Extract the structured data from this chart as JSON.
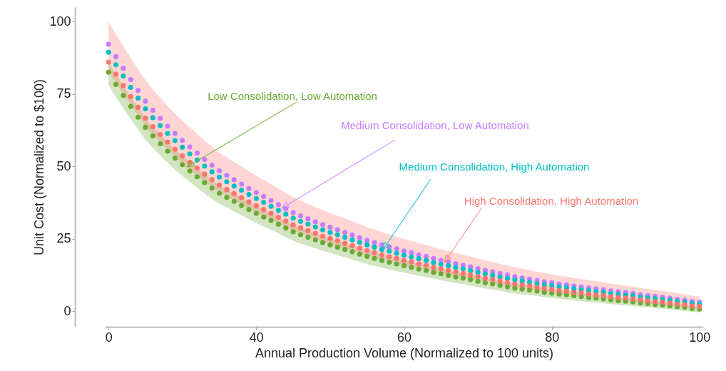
{
  "chart_data": {
    "type": "scatter",
    "xlabel": "Annual Production Volume (Normalized to 100 units)",
    "ylabel": "Unit Cost (Normalized to $100)",
    "ylim": [
      -5.4,
      105
    ],
    "yticks": [
      0,
      25,
      50,
      75,
      100
    ],
    "grid": false,
    "marker": "circle",
    "categories": [
      "0",
      null,
      null,
      null,
      null,
      null,
      null,
      null,
      null,
      null,
      null,
      null,
      null,
      null,
      null,
      null,
      null,
      null,
      null,
      null,
      "40",
      null,
      null,
      null,
      null,
      null,
      null,
      null,
      null,
      null,
      null,
      null,
      null,
      null,
      null,
      null,
      null,
      null,
      null,
      null,
      "60",
      null,
      null,
      null,
      null,
      null,
      null,
      null,
      null,
      null,
      null,
      null,
      null,
      null,
      null,
      null,
      null,
      null,
      null,
      null,
      "80",
      null,
      null,
      null,
      null,
      null,
      null,
      null,
      null,
      null,
      null,
      null,
      null,
      null,
      null,
      null,
      null,
      null,
      null,
      null,
      "100"
    ],
    "series": [
      {
        "name": "Low Consolidation, Low Automation",
        "color": "#6aaa32",
        "values": [
          82.5,
          78.3,
          74.5,
          70.7,
          67.0,
          63.5,
          60.5,
          57.8,
          55.2,
          52.8,
          50.6,
          48.4,
          46.4,
          44.4,
          42.5,
          40.7,
          39.3,
          37.9,
          36.5,
          35.1,
          33.8,
          32.5,
          31.3,
          30.0,
          28.7,
          27.4,
          26.4,
          25.5,
          24.6,
          23.7,
          22.9,
          22.1,
          21.3,
          20.5,
          19.7,
          18.9,
          18.2,
          17.5,
          16.9,
          16.3,
          15.7,
          15.1,
          14.5,
          14.0,
          13.4,
          12.9,
          12.3,
          11.8,
          11.4,
          10.9,
          10.3,
          9.8,
          9.4,
          8.9,
          8.4,
          7.9,
          7.6,
          7.3,
          6.9,
          6.5,
          6.2,
          5.9,
          5.6,
          5.3,
          5.0,
          4.7,
          4.5,
          4.2,
          3.9,
          3.6,
          3.4,
          3.2,
          2.8,
          2.6,
          2.3,
          2.1,
          1.8,
          1.5,
          1.3,
          0.9,
          0.7
        ],
        "lower": [
          78.0,
          73.9,
          70.1,
          66.4,
          62.8,
          59.3,
          56.4,
          53.7,
          51.2,
          48.8,
          46.7,
          44.6,
          42.6,
          40.7,
          38.8,
          37.1,
          35.8,
          34.4,
          33.1,
          31.7,
          30.5,
          29.2,
          28.1,
          26.8,
          25.6,
          24.3,
          23.4,
          22.5,
          21.7,
          20.8,
          20.1,
          19.3,
          18.6,
          17.8,
          17.0,
          16.3,
          15.6,
          15.0,
          14.4,
          13.9,
          13.3,
          12.8,
          12.2,
          11.7,
          11.2,
          10.7,
          10.1,
          9.7,
          9.3,
          8.8,
          8.3,
          7.8,
          7.5,
          7.0,
          6.5,
          6.1,
          5.8,
          5.5,
          5.2,
          4.8,
          4.5,
          4.3,
          4.0,
          3.7,
          3.4,
          3.2,
          3.0,
          2.7,
          2.5,
          2.2,
          2.0,
          1.8,
          1.5,
          1.3,
          1.0,
          0.8,
          0.6,
          0.3,
          0.1,
          -0.3,
          -0.4
        ],
        "upper": [
          86.0,
          81.8,
          77.9,
          74.1,
          70.4,
          66.7,
          63.7,
          61.0,
          58.4,
          55.9,
          53.6,
          51.4,
          49.4,
          47.3,
          45.4,
          43.5,
          42.0,
          40.6,
          39.2,
          37.7,
          36.4,
          35.1,
          33.8,
          32.4,
          31.1,
          29.8,
          28.8,
          27.8,
          26.9,
          25.9,
          25.1,
          24.3,
          23.4,
          22.6,
          21.7,
          20.9,
          20.2,
          19.4,
          18.8,
          18.2,
          17.5,
          17.0,
          16.3,
          15.8,
          15.1,
          14.6,
          14.0,
          13.5,
          13.0,
          12.5,
          11.9,
          11.4,
          10.9,
          10.4,
          9.9,
          9.4,
          9.0,
          8.7,
          8.2,
          7.9,
          7.5,
          7.1,
          6.9,
          6.5,
          6.3,
          5.9,
          5.6,
          5.4,
          5.0,
          4.7,
          4.5,
          4.2,
          3.9,
          3.6,
          3.3,
          3.1,
          2.8,
          2.4,
          2.2,
          1.8,
          1.6
        ]
      },
      {
        "name": "Medium Consolidation, Low Automation",
        "color": "#c77cff",
        "values": [
          92.2,
          87.9,
          83.9,
          80.0,
          76.2,
          72.5,
          69.4,
          66.6,
          63.9,
          61.4,
          59.0,
          56.7,
          54.6,
          52.4,
          50.4,
          48.5,
          46.9,
          45.4,
          43.9,
          42.4,
          41.0,
          39.6,
          38.2,
          36.8,
          35.4,
          34.0,
          32.9,
          31.9,
          30.9,
          29.9,
          29.0,
          28.1,
          27.2,
          26.3,
          25.4,
          24.5,
          23.7,
          22.9,
          22.2,
          21.5,
          20.8,
          20.2,
          19.5,
          18.9,
          18.2,
          17.6,
          17.0,
          16.4,
          15.9,
          15.3,
          14.7,
          14.1,
          13.6,
          13.0,
          12.5,
          11.9,
          11.5,
          11.1,
          10.6,
          10.2,
          9.8,
          9.4,
          9.1,
          8.7,
          8.4,
          8.0,
          7.7,
          7.4,
          7.0,
          6.7,
          6.4,
          6.1,
          5.7,
          5.4,
          5.1,
          4.8,
          4.5,
          4.1,
          3.8,
          3.4,
          3.1
        ]
      },
      {
        "name": "Medium Consolidation, High Automation",
        "color": "#00bfc4",
        "values": [
          89.4,
          85.1,
          81.2,
          77.3,
          73.6,
          69.9,
          66.8,
          64.1,
          61.4,
          58.9,
          56.6,
          54.3,
          52.2,
          50.1,
          48.1,
          46.3,
          44.7,
          43.2,
          41.8,
          40.3,
          38.9,
          37.6,
          36.2,
          34.8,
          33.5,
          32.1,
          31.0,
          30.1,
          29.1,
          28.1,
          27.2,
          26.4,
          25.5,
          24.6,
          23.8,
          22.9,
          22.1,
          21.3,
          20.7,
          20.0,
          19.3,
          18.7,
          18.1,
          17.5,
          16.8,
          16.2,
          15.7,
          15.1,
          14.6,
          14.0,
          13.4,
          12.9,
          12.4,
          11.8,
          11.3,
          10.8,
          10.4,
          10.0,
          9.5,
          9.1,
          8.8,
          8.4,
          8.1,
          7.7,
          7.4,
          7.1,
          6.8,
          6.5,
          6.1,
          5.8,
          5.5,
          5.3,
          4.9,
          4.6,
          4.3,
          4.0,
          3.7,
          3.4,
          3.1,
          2.7,
          2.4
        ]
      },
      {
        "name": "High Consolidation, High Automation",
        "color": "#f8766d",
        "values": [
          86.0,
          81.8,
          77.9,
          74.1,
          70.4,
          66.7,
          63.7,
          61.0,
          58.4,
          55.9,
          53.6,
          51.4,
          49.4,
          47.3,
          45.4,
          43.5,
          42.0,
          40.6,
          39.2,
          37.7,
          36.4,
          35.1,
          33.8,
          32.4,
          31.1,
          29.8,
          28.8,
          27.8,
          26.9,
          25.9,
          25.1,
          24.3,
          23.4,
          22.6,
          21.7,
          20.9,
          20.2,
          19.4,
          18.8,
          18.2,
          17.5,
          17.0,
          16.3,
          15.8,
          15.1,
          14.6,
          14.0,
          13.5,
          13.0,
          12.5,
          11.9,
          11.4,
          10.9,
          10.4,
          9.9,
          9.4,
          9.0,
          8.7,
          8.2,
          7.9,
          7.5,
          7.1,
          6.9,
          6.5,
          6.3,
          5.9,
          5.6,
          5.4,
          5.0,
          4.7,
          4.5,
          4.2,
          3.9,
          3.6,
          3.3,
          3.1,
          2.8,
          2.4,
          2.2,
          1.8,
          1.6
        ],
        "lower": [
          83.0,
          78.8,
          75.0,
          71.2,
          67.6,
          63.9,
          61.0,
          58.3,
          55.7,
          53.3,
          51.0,
          48.8,
          46.9,
          44.8,
          43.0,
          41.1,
          39.6,
          38.3,
          36.9,
          35.4,
          34.2,
          32.9,
          31.7,
          30.3,
          29.0,
          27.8,
          26.8,
          25.8,
          25.0,
          24.0,
          23.2,
          22.4,
          21.6,
          20.8,
          19.9,
          19.2,
          18.5,
          17.7,
          17.2,
          16.6,
          15.9,
          15.4,
          14.8,
          14.3,
          13.6,
          13.1,
          12.6,
          12.1,
          11.6,
          11.1,
          10.6,
          10.1,
          9.6,
          9.1,
          8.6,
          8.2,
          7.8,
          7.5,
          7.0,
          6.8,
          6.4,
          6.0,
          5.8,
          5.4,
          5.3,
          4.9,
          4.6,
          4.4,
          4.0,
          3.8,
          3.6,
          3.3,
          3.0,
          2.7,
          2.4,
          2.3,
          2.0,
          1.6,
          1.4,
          1.0,
          0.9
        ],
        "upper": [
          100.0,
          95.6,
          91.5,
          87.5,
          83.6,
          79.8,
          76.6,
          73.7,
          70.9,
          68.3,
          65.8,
          63.4,
          61.2,
          58.9,
          56.8,
          54.7,
          53.1,
          51.5,
          49.9,
          48.3,
          46.8,
          45.3,
          43.8,
          42.3,
          40.8,
          39.3,
          38.1,
          37.1,
          36.0,
          34.9,
          33.9,
          32.9,
          32.0,
          31.0,
          30.0,
          29.0,
          28.2,
          27.3,
          26.5,
          25.7,
          24.9,
          24.3,
          23.5,
          22.9,
          22.1,
          21.4,
          20.8,
          20.1,
          19.5,
          18.9,
          18.2,
          17.6,
          17.0,
          16.3,
          15.8,
          15.1,
          14.6,
          14.2,
          13.6,
          13.2,
          12.7,
          12.2,
          11.9,
          11.5,
          11.1,
          10.7,
          10.3,
          10.0,
          9.5,
          9.2,
          8.8,
          8.5,
          8.0,
          7.7,
          7.3,
          7.0,
          6.6,
          6.2,
          5.8,
          5.4,
          5.1
        ]
      }
    ]
  }
}
